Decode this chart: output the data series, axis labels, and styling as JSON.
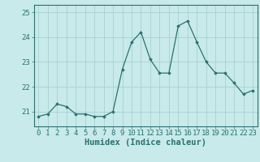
{
  "x": [
    0,
    1,
    2,
    3,
    4,
    5,
    6,
    7,
    8,
    9,
    10,
    11,
    12,
    13,
    14,
    15,
    16,
    17,
    18,
    19,
    20,
    21,
    22,
    23
  ],
  "y": [
    20.8,
    20.9,
    21.3,
    21.2,
    20.9,
    20.9,
    20.8,
    20.8,
    21.0,
    22.7,
    23.8,
    24.2,
    23.1,
    22.55,
    22.55,
    24.45,
    24.65,
    23.8,
    23.0,
    22.55,
    22.55,
    22.15,
    21.7,
    21.85
  ],
  "line_color": "#2d7070",
  "marker": "D",
  "marker_size": 1.8,
  "bg_color": "#c8eaea",
  "grid_color": "#a8d0d0",
  "xlabel": "Humidex (Indice chaleur)",
  "ylim": [
    20.4,
    25.3
  ],
  "yticks": [
    21,
    22,
    23,
    24,
    25
  ],
  "xtick_labels": [
    "0",
    "1",
    "2",
    "3",
    "4",
    "5",
    "6",
    "7",
    "8",
    "9",
    "10",
    "11",
    "12",
    "13",
    "14",
    "15",
    "16",
    "17",
    "18",
    "19",
    "20",
    "21",
    "22",
    "23"
  ],
  "xlabel_fontsize": 7.5,
  "tick_fontsize": 6.5,
  "spine_color": "#2d7070"
}
